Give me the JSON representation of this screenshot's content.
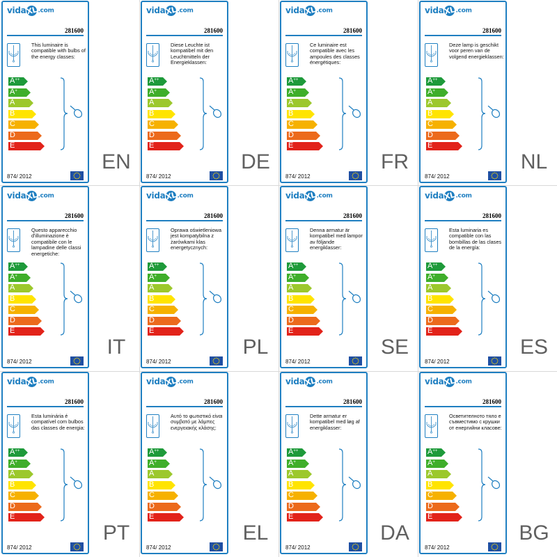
{
  "logo": {
    "prefix": "vida",
    "mark": "XL",
    "suffix": ".com"
  },
  "model": "281600",
  "regulation": "874/ 2012",
  "classes": [
    {
      "label": "A",
      "sup": "++",
      "color": "#1e9a3a"
    },
    {
      "label": "A",
      "sup": "+",
      "color": "#3fae2a"
    },
    {
      "label": "A",
      "sup": "",
      "color": "#9cc82c"
    },
    {
      "label": "B",
      "sup": "",
      "color": "#ffe400"
    },
    {
      "label": "C",
      "sup": "",
      "color": "#f6b100"
    },
    {
      "label": "D",
      "sup": "",
      "color": "#ec6a1c"
    },
    {
      "label": "E",
      "sup": "",
      "color": "#e2231a"
    }
  ],
  "accent_color": "#1f7fc1",
  "icons": [
    "chandelier-icon",
    "bulb-icon",
    "eu-flag-icon"
  ],
  "panels": [
    {
      "lang": "EN",
      "text": "This luminaire is compatible with bulbs of the energy classes:"
    },
    {
      "lang": "DE",
      "text": "Diese Leuchte ist kompatibel mit den Leuchtmitteln der Energieklassen:"
    },
    {
      "lang": "FR",
      "text": "Ce luminaire est compatible avec les ampoules des classes énergétiques:"
    },
    {
      "lang": "NL",
      "text": "Deze lamp is geschikt voor peren van de volgend energieklassen:"
    },
    {
      "lang": "IT",
      "text": "Questo apparecchio d'illuminazione è compatibile con le lampadine delle classi energetiche:"
    },
    {
      "lang": "PL",
      "text": "Oprawa oświetleniowa jest kompatybilna z żarówkami klas energetycznych:"
    },
    {
      "lang": "SE",
      "text": "Denna armatur är kompatibel med lampor av följande energiklasser:"
    },
    {
      "lang": "ES",
      "text": "Esta luminaria es compatible con las bombillas de las clases de la energía:"
    },
    {
      "lang": "PT",
      "text": "Esta luminária é compatível com bulbos das classes de energia:"
    },
    {
      "lang": "EL",
      "text": "Αυτό το φωτιστικό είναι συμβατό με λάμπες ενεργειακής κλάσης:"
    },
    {
      "lang": "DA",
      "text": "Dette armatur er kompatibel med løg af energiklasser:"
    },
    {
      "lang": "BG",
      "text": "Осветителното тяло е съвместимо с крушки от енергийни класове:"
    }
  ]
}
